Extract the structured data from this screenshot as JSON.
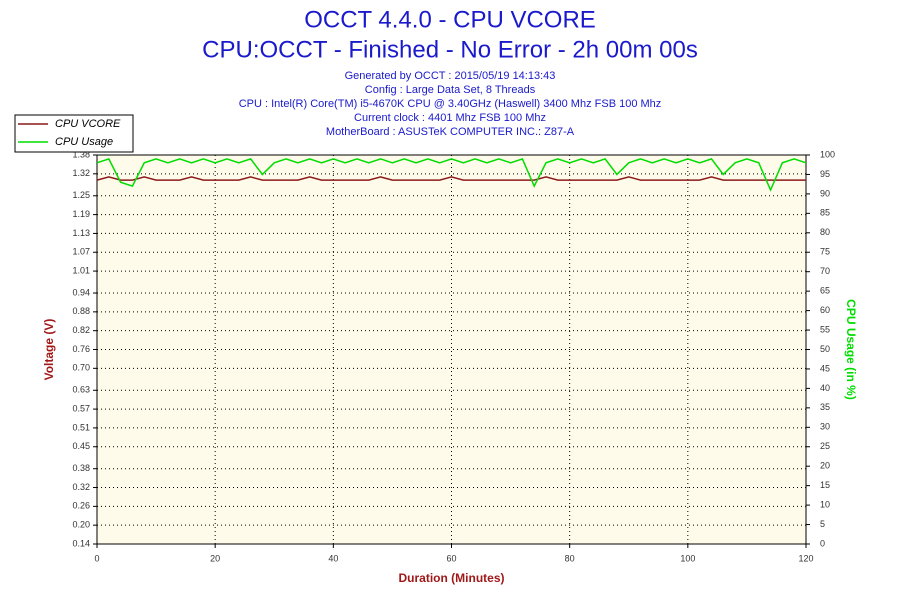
{
  "chart_data": {
    "type": "line",
    "title": "OCCT 4.4.0 - CPU VCORE",
    "subtitle": "CPU:OCCT - Finished - No Error - 2h 00m 00s",
    "annotations": [
      "Generated by OCCT : 2015/05/19 14:13:43",
      "Config : Large Data Set, 8 Threads",
      "CPU : Intel(R) Core(TM) i5-4670K CPU @ 3.40GHz (Haswell) 3400 Mhz FSB 100 Mhz",
      "Current clock : 4401 Mhz FSB 100 Mhz",
      "MotherBoard : ASUSTeK COMPUTER INC.: Z87-A"
    ],
    "x_label": "Duration (Minutes)",
    "y_label": "Voltage (V)",
    "y2_label": "CPU Usage (in %)",
    "xlim": [
      0,
      120
    ],
    "xticks": [
      0,
      20,
      40,
      60,
      80,
      100,
      120
    ],
    "ylim": [
      0.14,
      1.38
    ],
    "yticks": [
      0.14,
      {
        "value": 0.2,
        "label": "0.20"
      },
      0.26,
      0.32,
      0.38,
      0.45,
      0.51,
      0.57,
      0.63,
      {
        "value": 0.7,
        "label": "0.70"
      },
      0.76,
      0.82,
      0.88,
      0.94,
      1.01,
      1.07,
      1.13,
      1.19,
      1.25,
      1.32,
      1.38
    ],
    "y2lim": [
      0,
      100
    ],
    "y2ticks": [
      0,
      5,
      10,
      15,
      20,
      25,
      30,
      35,
      40,
      45,
      50,
      55,
      60,
      65,
      70,
      75,
      80,
      85,
      90,
      95,
      100
    ],
    "grid": true,
    "legend": "upper left",
    "x": [
      0,
      2,
      4,
      6,
      8,
      10,
      12,
      14,
      16,
      18,
      20,
      22,
      24,
      26,
      28,
      30,
      32,
      34,
      36,
      38,
      40,
      42,
      44,
      46,
      48,
      50,
      52,
      54,
      56,
      58,
      60,
      62,
      64,
      66,
      68,
      70,
      72,
      74,
      76,
      78,
      80,
      82,
      84,
      86,
      88,
      90,
      92,
      94,
      96,
      98,
      100,
      102,
      104,
      106,
      108,
      110,
      112,
      114,
      116,
      118,
      120
    ],
    "series": [
      {
        "name": "CPU VCORE",
        "color": "#8b1a1a",
        "axis": "y",
        "values": [
          1.3,
          1.31,
          1.3,
          1.3,
          1.31,
          1.3,
          1.3,
          1.3,
          1.31,
          1.3,
          1.3,
          1.3,
          1.3,
          1.31,
          1.3,
          1.3,
          1.3,
          1.3,
          1.31,
          1.3,
          1.3,
          1.3,
          1.3,
          1.3,
          1.31,
          1.3,
          1.3,
          1.3,
          1.3,
          1.3,
          1.31,
          1.3,
          1.3,
          1.3,
          1.3,
          1.3,
          1.3,
          1.3,
          1.31,
          1.3,
          1.3,
          1.3,
          1.3,
          1.3,
          1.3,
          1.31,
          1.3,
          1.3,
          1.3,
          1.3,
          1.3,
          1.3,
          1.31,
          1.3,
          1.3,
          1.3,
          1.3,
          1.3,
          1.3,
          1.3,
          1.3
        ]
      },
      {
        "name": "CPU Usage",
        "color": "#00dd00",
        "axis": "y2",
        "values": [
          98,
          99,
          93,
          92,
          98,
          99,
          98,
          99,
          98,
          99,
          98,
          99,
          98,
          99,
          95,
          98,
          99,
          98,
          99,
          98,
          99,
          98,
          99,
          98,
          99,
          98,
          99,
          98,
          99,
          98,
          99,
          98,
          99,
          98,
          99,
          98,
          99,
          92,
          98,
          99,
          98,
          99,
          98,
          99,
          95,
          98,
          99,
          98,
          99,
          98,
          99,
          98,
          99,
          95,
          98,
          99,
          98,
          91,
          98,
          99,
          98
        ]
      }
    ]
  }
}
